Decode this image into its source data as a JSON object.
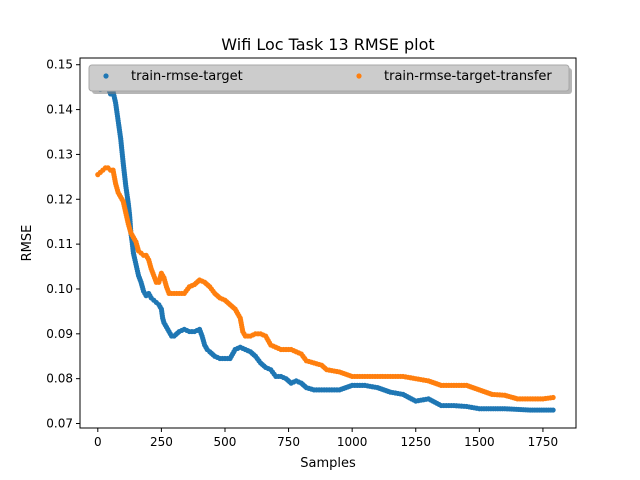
{
  "chart_data": {
    "type": "scatter",
    "title": "Wifi Loc Task 13 RMSE plot",
    "xlabel": "Samples",
    "ylabel": "RMSE",
    "xlim": [
      -70,
      1880
    ],
    "ylim": [
      0.069,
      0.1515
    ],
    "xticks": [
      0,
      250,
      500,
      750,
      1000,
      1250,
      1500,
      1750
    ],
    "xtick_labels": [
      "0",
      "250",
      "500",
      "750",
      "1000",
      "1250",
      "1500",
      "1750"
    ],
    "yticks": [
      0.07,
      0.08,
      0.09,
      0.1,
      0.11,
      0.12,
      0.13,
      0.14,
      0.15
    ],
    "ytick_labels": [
      "0.07",
      "0.08",
      "0.09",
      "0.10",
      "0.11",
      "0.12",
      "0.13",
      "0.14",
      "0.15"
    ],
    "grid": false,
    "legend": {
      "position": "top",
      "ncol": 2
    },
    "series": [
      {
        "name": "train-rmse-target",
        "color": "#1f77b4",
        "points": [
          [
            0,
            0.146
          ],
          [
            10,
            0.1445
          ],
          [
            20,
            0.147
          ],
          [
            30,
            0.1455
          ],
          [
            40,
            0.145
          ],
          [
            50,
            0.1435
          ],
          [
            60,
            0.144
          ],
          [
            70,
            0.1415
          ],
          [
            75,
            0.1395
          ],
          [
            80,
            0.1375
          ],
          [
            85,
            0.1355
          ],
          [
            90,
            0.1335
          ],
          [
            100,
            0.128
          ],
          [
            110,
            0.123
          ],
          [
            120,
            0.119
          ],
          [
            125,
            0.1165
          ],
          [
            130,
            0.1125
          ],
          [
            135,
            0.1105
          ],
          [
            140,
            0.108
          ],
          [
            150,
            0.1055
          ],
          [
            160,
            0.103
          ],
          [
            170,
            0.1015
          ],
          [
            180,
            0.0995
          ],
          [
            190,
            0.0985
          ],
          [
            200,
            0.099
          ],
          [
            210,
            0.098
          ],
          [
            220,
            0.0975
          ],
          [
            230,
            0.097
          ],
          [
            240,
            0.0965
          ],
          [
            250,
            0.0955
          ],
          [
            255,
            0.0935
          ],
          [
            260,
            0.0925
          ],
          [
            270,
            0.0915
          ],
          [
            280,
            0.0905
          ],
          [
            290,
            0.0895
          ],
          [
            300,
            0.0895
          ],
          [
            320,
            0.0905
          ],
          [
            340,
            0.091
          ],
          [
            360,
            0.0905
          ],
          [
            380,
            0.0905
          ],
          [
            400,
            0.091
          ],
          [
            410,
            0.0895
          ],
          [
            420,
            0.0875
          ],
          [
            430,
            0.0865
          ],
          [
            440,
            0.086
          ],
          [
            460,
            0.085
          ],
          [
            480,
            0.0845
          ],
          [
            500,
            0.0845
          ],
          [
            520,
            0.0845
          ],
          [
            530,
            0.0855
          ],
          [
            540,
            0.0865
          ],
          [
            560,
            0.087
          ],
          [
            580,
            0.0865
          ],
          [
            600,
            0.086
          ],
          [
            620,
            0.085
          ],
          [
            640,
            0.0835
          ],
          [
            660,
            0.0825
          ],
          [
            680,
            0.082
          ],
          [
            700,
            0.0805
          ],
          [
            720,
            0.0805
          ],
          [
            740,
            0.08
          ],
          [
            760,
            0.079
          ],
          [
            780,
            0.0795
          ],
          [
            800,
            0.079
          ],
          [
            820,
            0.078
          ],
          [
            850,
            0.0775
          ],
          [
            900,
            0.0775
          ],
          [
            950,
            0.0775
          ],
          [
            1000,
            0.0785
          ],
          [
            1050,
            0.0785
          ],
          [
            1100,
            0.078
          ],
          [
            1150,
            0.077
          ],
          [
            1200,
            0.0765
          ],
          [
            1250,
            0.075
          ],
          [
            1300,
            0.0755
          ],
          [
            1350,
            0.074
          ],
          [
            1400,
            0.074
          ],
          [
            1450,
            0.0738
          ],
          [
            1500,
            0.0733
          ],
          [
            1600,
            0.0733
          ],
          [
            1700,
            0.073
          ],
          [
            1790,
            0.073
          ]
        ]
      },
      {
        "name": "train-rmse-target-transfer",
        "color": "#ff7f0e",
        "points": [
          [
            0,
            0.1255
          ],
          [
            10,
            0.126
          ],
          [
            20,
            0.1265
          ],
          [
            30,
            0.127
          ],
          [
            40,
            0.127
          ],
          [
            50,
            0.1265
          ],
          [
            60,
            0.1265
          ],
          [
            70,
            0.1235
          ],
          [
            80,
            0.1215
          ],
          [
            90,
            0.1205
          ],
          [
            100,
            0.1195
          ],
          [
            110,
            0.117
          ],
          [
            120,
            0.1145
          ],
          [
            130,
            0.1125
          ],
          [
            140,
            0.1115
          ],
          [
            150,
            0.1105
          ],
          [
            160,
            0.1085
          ],
          [
            170,
            0.108
          ],
          [
            180,
            0.1075
          ],
          [
            190,
            0.1075
          ],
          [
            200,
            0.1065
          ],
          [
            210,
            0.1045
          ],
          [
            220,
            0.103
          ],
          [
            230,
            0.1015
          ],
          [
            240,
            0.1015
          ],
          [
            250,
            0.1035
          ],
          [
            260,
            0.1025
          ],
          [
            270,
            0.1005
          ],
          [
            280,
            0.099
          ],
          [
            300,
            0.099
          ],
          [
            320,
            0.099
          ],
          [
            340,
            0.099
          ],
          [
            360,
            0.1005
          ],
          [
            380,
            0.101
          ],
          [
            400,
            0.102
          ],
          [
            420,
            0.1015
          ],
          [
            440,
            0.1005
          ],
          [
            460,
            0.099
          ],
          [
            480,
            0.098
          ],
          [
            500,
            0.0975
          ],
          [
            520,
            0.0965
          ],
          [
            540,
            0.0955
          ],
          [
            560,
            0.0935
          ],
          [
            570,
            0.0905
          ],
          [
            580,
            0.0895
          ],
          [
            600,
            0.0895
          ],
          [
            620,
            0.09
          ],
          [
            640,
            0.09
          ],
          [
            660,
            0.0895
          ],
          [
            680,
            0.0875
          ],
          [
            700,
            0.087
          ],
          [
            720,
            0.0865
          ],
          [
            740,
            0.0865
          ],
          [
            760,
            0.0865
          ],
          [
            780,
            0.086
          ],
          [
            800,
            0.0855
          ],
          [
            820,
            0.084
          ],
          [
            850,
            0.0835
          ],
          [
            880,
            0.083
          ],
          [
            900,
            0.082
          ],
          [
            950,
            0.0815
          ],
          [
            1000,
            0.0805
          ],
          [
            1050,
            0.0805
          ],
          [
            1100,
            0.0805
          ],
          [
            1150,
            0.0805
          ],
          [
            1200,
            0.0805
          ],
          [
            1250,
            0.08
          ],
          [
            1300,
            0.0795
          ],
          [
            1350,
            0.0785
          ],
          [
            1400,
            0.0785
          ],
          [
            1450,
            0.0785
          ],
          [
            1500,
            0.0775
          ],
          [
            1550,
            0.0765
          ],
          [
            1600,
            0.0763
          ],
          [
            1650,
            0.0755
          ],
          [
            1700,
            0.0755
          ],
          [
            1750,
            0.0755
          ],
          [
            1790,
            0.0758
          ]
        ]
      }
    ]
  }
}
